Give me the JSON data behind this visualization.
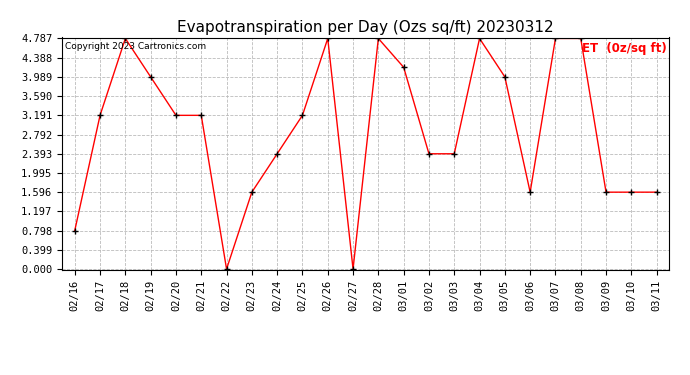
{
  "title": "Evapotranspiration per Day (Ozs sq/ft) 20230312",
  "copyright": "Copyright 2023 Cartronics.com",
  "legend_label": "ET  (0z/sq ft)",
  "x_labels": [
    "02/16",
    "02/17",
    "02/18",
    "02/19",
    "02/20",
    "02/21",
    "02/22",
    "02/23",
    "02/24",
    "02/25",
    "02/26",
    "02/27",
    "02/28",
    "03/01",
    "03/02",
    "03/03",
    "03/04",
    "03/05",
    "03/06",
    "03/07",
    "03/08",
    "03/09",
    "03/10",
    "03/11"
  ],
  "y_values": [
    0.798,
    3.191,
    4.787,
    3.989,
    3.191,
    3.191,
    0.0,
    1.596,
    2.393,
    3.191,
    4.787,
    0.0,
    4.787,
    4.189,
    2.393,
    2.393,
    4.787,
    3.989,
    1.596,
    4.787,
    4.787,
    1.596,
    1.596,
    1.596
  ],
  "y_ticks": [
    0.0,
    0.399,
    0.798,
    1.197,
    1.596,
    1.995,
    2.393,
    2.792,
    3.191,
    3.59,
    3.989,
    4.388,
    4.787
  ],
  "y_min": 0.0,
  "y_max": 4.787,
  "line_color": "red",
  "marker_color": "black",
  "marker": "+",
  "grid_color": "#bbbbbb",
  "bg_color": "white",
  "title_fontsize": 11,
  "copyright_fontsize": 6.5,
  "legend_fontsize": 8.5,
  "tick_fontsize": 7.5,
  "fig_width": 6.9,
  "fig_height": 3.75,
  "dpi": 100
}
